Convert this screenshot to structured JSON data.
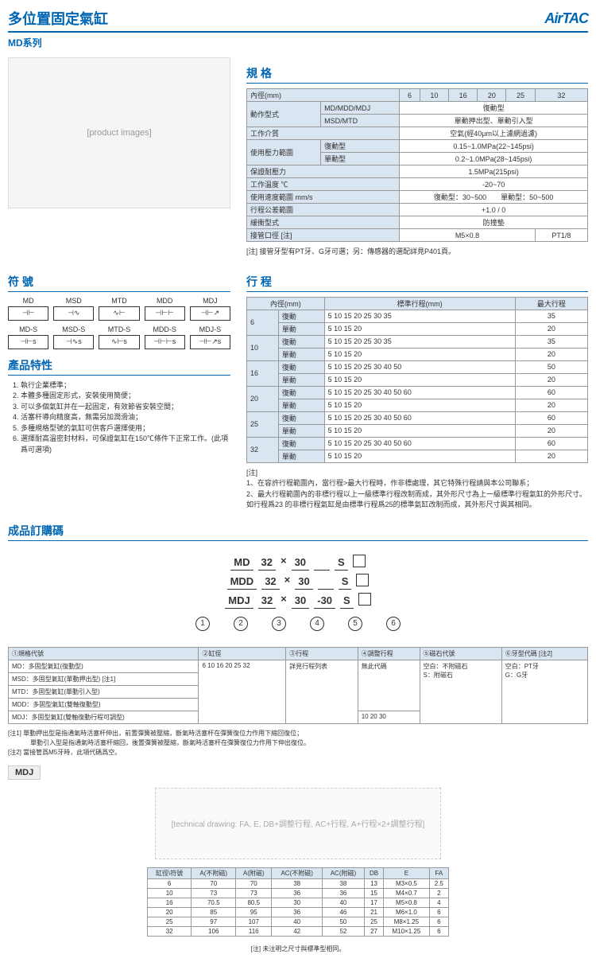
{
  "header": {
    "title": "多位置固定氣缸",
    "logo": "AirTAC",
    "subtitle": "MD系列"
  },
  "spec": {
    "title": "規 格",
    "bore_header": "內徑(mm)",
    "bores": [
      "6",
      "10",
      "16",
      "20",
      "25",
      "32"
    ],
    "rows": [
      {
        "label": "動作型式",
        "sub1": "MD/MDD/MDJ",
        "val1": "復動型",
        "sub2": "MSD/MTD",
        "val2": "單動押出型、單動引入型"
      },
      {
        "label": "工作介質",
        "val": "空氣(經40μm以上濾網過濾)"
      },
      {
        "label": "使用壓力範圍",
        "sub1": "復動型",
        "val1": "0.15~1.0MPa(22~145psi)",
        "sub2": "單動型",
        "val2": "0.2~1.0MPa(28~145psi)"
      },
      {
        "label": "保證耐壓力",
        "val": "1.5MPa(215psi)"
      },
      {
        "label": "工作溫度 ℃",
        "val": "-20~70"
      },
      {
        "label": "使用速度範圍 mm/s",
        "val": "復動型：30~500　　單動型：50~500"
      },
      {
        "label": "行程公差範圍",
        "val": "+1.0 / 0"
      },
      {
        "label": "緩衝型式",
        "val": "防撞墊"
      },
      {
        "label": "接管口徑 [注]",
        "vals": [
          "M5×0.8",
          "",
          "",
          "",
          "",
          "PT1/8"
        ]
      }
    ],
    "note": "[注] 接管牙型有PT牙、G牙可選；另：傳感器的選配詳見P401頁。"
  },
  "symbols": {
    "title": "符 號",
    "items": [
      "MD",
      "MSD",
      "MTD",
      "MDD",
      "MDJ",
      "MD-S",
      "MSD-S",
      "MTD-S",
      "MDD-S",
      "MDJ-S"
    ]
  },
  "stroke": {
    "title": "行 程",
    "bore_header": "內徑(mm)",
    "std_header": "標準行程(mm)",
    "max_header": "最大行程",
    "rows": [
      {
        "bore": "6",
        "type1": "復動",
        "val1": "5 10 15 20 25 30 35",
        "max1": "35",
        "type2": "單動",
        "val2": "5 10 15 20",
        "max2": "20"
      },
      {
        "bore": "10",
        "type1": "復動",
        "val1": "5 10 15 20 25 30 35",
        "max1": "35",
        "type2": "單動",
        "val2": "5 10 15 20",
        "max2": "20"
      },
      {
        "bore": "16",
        "type1": "復動",
        "val1": "5 10 15 20 25 30 40 50",
        "max1": "50",
        "type2": "單動",
        "val2": "5 10 15 20",
        "max2": "20"
      },
      {
        "bore": "20",
        "type1": "復動",
        "val1": "5 10 15 20 25 30 40 50 60",
        "max1": "60",
        "type2": "單動",
        "val2": "5 10 15 20",
        "max2": "20"
      },
      {
        "bore": "25",
        "type1": "復動",
        "val1": "5 10 15 20 25 30 40 50 60",
        "max1": "60",
        "type2": "單動",
        "val2": "5 10 15 20",
        "max2": "20"
      },
      {
        "bore": "32",
        "type1": "復動",
        "val1": "5 10 15 20 25 30 40 50 60",
        "max1": "60",
        "type2": "單動",
        "val2": "5 10 15 20",
        "max2": "20"
      }
    ],
    "notes_label": "[注]",
    "note1": "1、在容許行程範圍內，當行程>最大行程時，作非標處理，其它特殊行程請與本公司聯系；",
    "note2": "2、最大行程範圍內的非標行程以上一級標準行程改制而成，其外形尺寸為上一級標準行程氣缸的外形尺寸。如行程爲23 的非標行程氣缸是由標準行程爲25的標準氣缸改制而成，其外形尺寸與其相同。"
  },
  "features": {
    "title": "產品特性",
    "items": [
      "執行企業標準；",
      "本體多種固定形式，安裝使用簡便；",
      "可以多個氣缸并在一起固定，有效節省安裝空間；",
      "活塞杆導向精度高，無需另加潤滑油；",
      "多種規格型號的氣缸可供客戶選擇使用；",
      "選擇耐高溫密封材料，可保證氣缸在150℃條件下正常工作。(此項爲可選項)"
    ]
  },
  "order": {
    "title": "成品訂購碼",
    "line1": [
      "MD",
      "32",
      "×",
      "30",
      "",
      "S",
      "□"
    ],
    "line2": [
      "MDD",
      "32",
      "×",
      "30",
      "",
      "S",
      "□"
    ],
    "line3": [
      "MDJ",
      "32",
      "×",
      "30",
      "-30",
      "S",
      "□"
    ],
    "circles": [
      "1",
      "2",
      "3",
      "4",
      "5",
      "6"
    ],
    "table": {
      "headers": [
        "①規格代號",
        "②缸徑",
        "③行程",
        "④調整行程",
        "⑤磁石代號",
        "⑥牙型代碼 [注2]"
      ],
      "col1": [
        "MD：多固型氣缸(復動型)",
        "MSD：多固型氣缸(單動押出型) [注1]",
        "MTD：多固型氣缸(單動引入型)",
        "MDD：多固型氣缸(雙軸復動型)",
        "MDJ：多固型氣缸(雙軸復動行程可調型)"
      ],
      "col2": "6 10 16 20 25 32",
      "col3": "詳見行程列表",
      "col4_1": "無此代碼",
      "col4_2": "10 20 30",
      "col5": "空白：不附磁石\nS：附磁石",
      "col6": "空白：PT牙\nG：G牙"
    },
    "foot1": "[注1] 單動押出型是指通氣時活塞杆伸出，前置彈簧被壓縮，斷氣時活塞杆在彈簧復位力作用下縮回復位；",
    "foot1b": "單動引入型是指通氣時活塞杆縮回，後置彈簧被壓縮，斷氣時活塞杆在彈簧復位力作用下伸出復位。",
    "foot2": "[注2] 當接管爲M5牙時，此項代碼爲空。"
  },
  "mdj": {
    "label": "MDJ",
    "diagram_labels": [
      "FA",
      "E",
      "DB+調整行程",
      "DB+行程+調整行程",
      "AC+行程",
      "A+行程×2+調整行程"
    ],
    "table": {
      "headers": [
        "缸徑\\符號",
        "A(不附磁)",
        "A(附磁)",
        "AC(不附磁)",
        "AC(附磁)",
        "DB",
        "E",
        "FA"
      ],
      "rows": [
        [
          "6",
          "70",
          "70",
          "38",
          "38",
          "13",
          "M3×0.5",
          "2.5"
        ],
        [
          "10",
          "73",
          "73",
          "36",
          "36",
          "15",
          "M4×0.7",
          "2"
        ],
        [
          "16",
          "70.5",
          "80.5",
          "30",
          "40",
          "17",
          "M5×0.8",
          "4"
        ],
        [
          "20",
          "85",
          "95",
          "36",
          "46",
          "21",
          "M6×1.0",
          "6"
        ],
        [
          "25",
          "97",
          "107",
          "40",
          "50",
          "25",
          "M8×1.25",
          "6"
        ],
        [
          "32",
          "106",
          "116",
          "42",
          "52",
          "27",
          "M10×1.25",
          "6"
        ]
      ]
    },
    "note": "[注] 未注明之尺寸與標準型相同。"
  }
}
